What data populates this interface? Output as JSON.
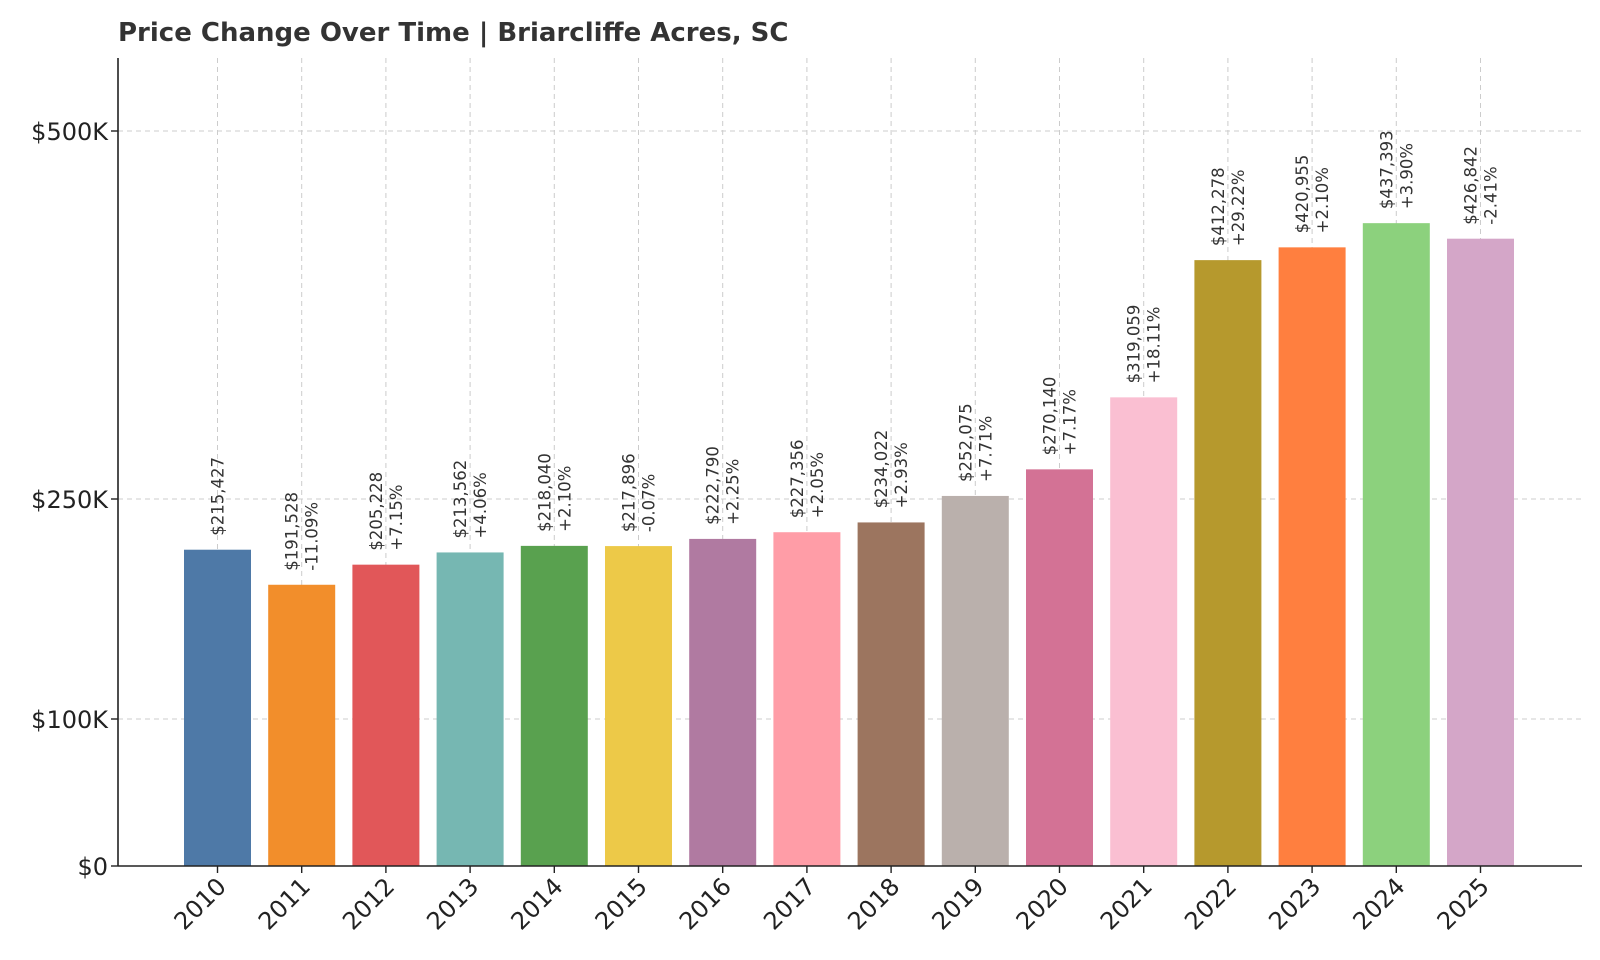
{
  "chart_data": {
    "type": "bar",
    "title": "Price Change Over Time | Briarcliffe Acres, SC",
    "xlabel": "",
    "ylabel": "",
    "categories": [
      "2010",
      "2011",
      "2012",
      "2013",
      "2014",
      "2015",
      "2016",
      "2017",
      "2018",
      "2019",
      "2020",
      "2021",
      "2022",
      "2023",
      "2024",
      "2025"
    ],
    "values": [
      215427,
      191528,
      205228,
      213562,
      218040,
      217896,
      222790,
      227356,
      234022,
      252075,
      270140,
      319059,
      412278,
      420955,
      437393,
      426842
    ],
    "value_labels": [
      "$215,427",
      "$191,528",
      "$205,228",
      "$213,562",
      "$218,040",
      "$217,896",
      "$222,790",
      "$227,356",
      "$234,022",
      "$252,075",
      "$270,140",
      "$319,059",
      "$412,278",
      "$420,955",
      "$437,393",
      "$426,842"
    ],
    "change_labels": [
      "",
      "-11.09%",
      "+7.15%",
      "+4.06%",
      "+2.10%",
      "-0.07%",
      "+2.25%",
      "+2.05%",
      "+2.93%",
      "+7.71%",
      "+7.17%",
      "+18.11%",
      "+29.22%",
      "+2.10%",
      "+3.90%",
      "-2.41%"
    ],
    "colors": [
      "#4e79a7",
      "#f28e2b",
      "#e15759",
      "#76b7b2",
      "#59a14f",
      "#edc948",
      "#b07aa1",
      "#ff9da7",
      "#9c755f",
      "#bab0ac",
      "#d37295",
      "#fabfd2",
      "#b6992d",
      "#ff7f3f",
      "#8cd17d",
      "#d4a6c8"
    ],
    "yticks": [
      0,
      100000,
      250000,
      500000
    ],
    "ytick_labels": [
      "$0",
      "$100K",
      "$250K",
      "$500K"
    ],
    "ylim": [
      0,
      550000
    ],
    "grid": true,
    "legend": "none"
  }
}
